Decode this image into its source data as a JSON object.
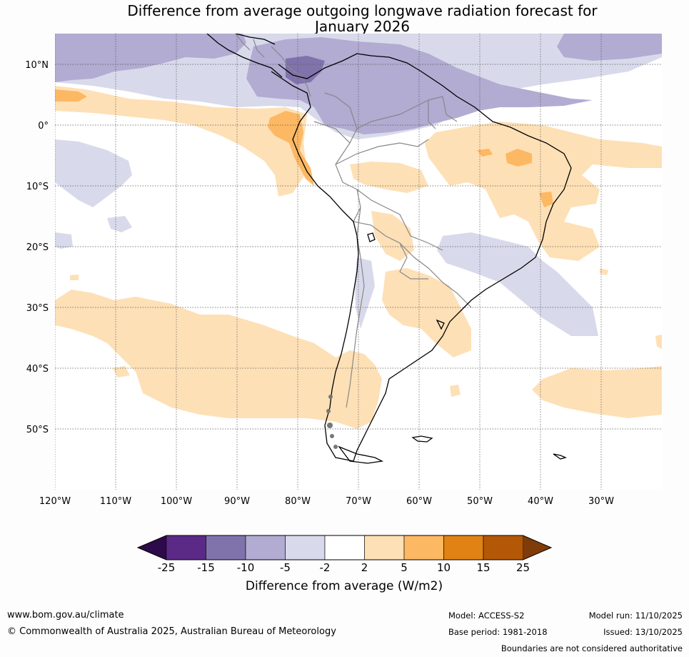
{
  "title_line1": "Difference from average outgoing longwave radiation forecast for",
  "title_line2": "January 2026",
  "lat_labels": [
    "10°N",
    "0°",
    "10°S",
    "20°S",
    "30°S",
    "40°S",
    "50°S"
  ],
  "lon_labels": [
    "120°W",
    "110°W",
    "100°W",
    "90°W",
    "80°W",
    "70°W",
    "60°W",
    "50°W",
    "40°W",
    "30°W"
  ],
  "colorbar": {
    "title": "Difference from average (W/m2)",
    "ticks": [
      "-25",
      "-15",
      "-10",
      "-5",
      "-2",
      "2",
      "5",
      "10",
      "15",
      "25"
    ],
    "colors": [
      "#2d0a4a",
      "#5b2a86",
      "#8073ac",
      "#b2abd2",
      "#d8daeb",
      "#ffffff",
      "#fee0b6",
      "#fdb863",
      "#e08214",
      "#b35806",
      "#7f3b08"
    ]
  },
  "footer": {
    "website": "www.bom.gov.au/climate",
    "copyright": "© Commonwealth of Australia 2025, Australian Bureau of Meteorology",
    "model": "Model: ACCESS-S2",
    "base_period": "Base period: 1981-2018",
    "model_run": "Model run: 11/10/2025",
    "issued": "Issued: 13/10/2025",
    "disclaimer": "Boundaries are not considered authoritative"
  }
}
